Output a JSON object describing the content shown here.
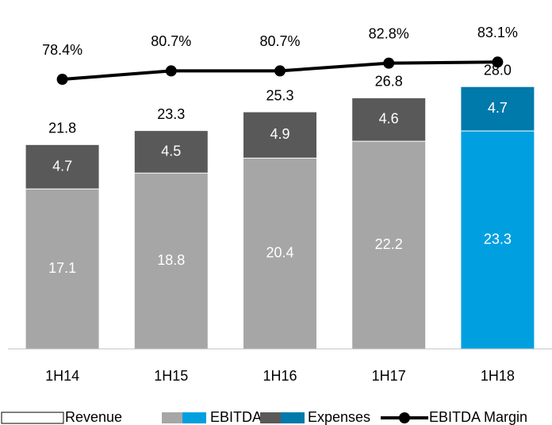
{
  "chart_data": {
    "type": "stacked_bar_line",
    "categories": [
      "1H14",
      "1H15",
      "1H16",
      "1H17",
      "1H18"
    ],
    "series": [
      {
        "name": "EBITDA",
        "colors": [
          "#a6a6a6",
          "#a6a6a6",
          "#a6a6a6",
          "#a6a6a6",
          "#00a0e0"
        ],
        "values": [
          17.1,
          18.8,
          20.4,
          22.2,
          23.3
        ]
      },
      {
        "name": "Expenses",
        "colors": [
          "#595959",
          "#595959",
          "#595959",
          "#595959",
          "#0079ab"
        ],
        "values": [
          4.7,
          4.5,
          4.9,
          4.6,
          4.7
        ]
      },
      {
        "name": "Revenue",
        "values": [
          21.8,
          23.3,
          25.3,
          26.8,
          28.0
        ],
        "value_labels": [
          "21.8",
          "23.3",
          "25.3",
          "26.8",
          "28.0"
        ]
      },
      {
        "name": "EBITDA Margin",
        "axis": "y2",
        "color": "#000000",
        "values": [
          78.4,
          80.7,
          80.7,
          82.8,
          83.1
        ],
        "value_labels": [
          "78.4%",
          "80.7%",
          "80.7%",
          "82.8%",
          "83.1%"
        ]
      }
    ],
    "ylim": [
      0,
      37.3
    ],
    "y2lim": [
      5,
      100
    ]
  }
}
